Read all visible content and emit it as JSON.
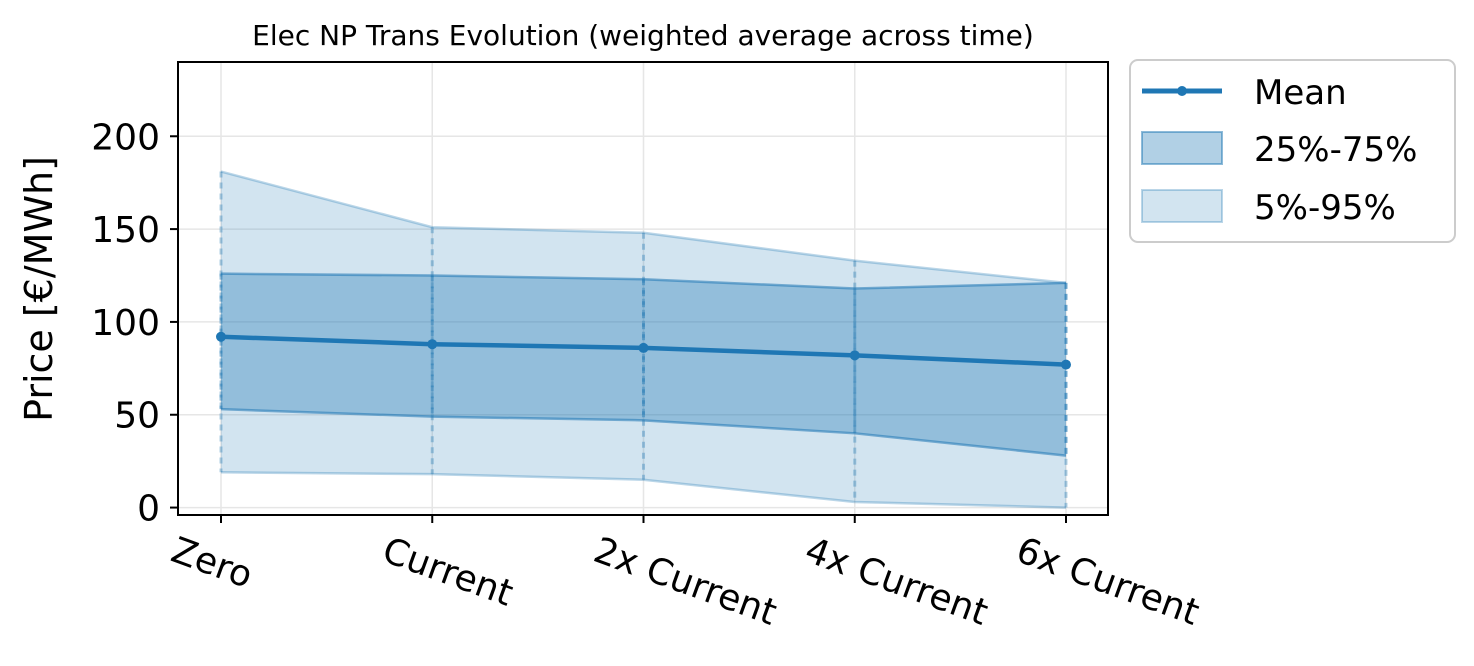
{
  "chart_data": {
    "type": "line",
    "title": "Elec NP Trans Evolution (weighted average across time)",
    "xlabel": "",
    "ylabel": "Price [€/MWh]",
    "categories": [
      "Zero",
      "Current",
      "2x Current",
      "4x Current",
      "6x Current"
    ],
    "ylim": [
      -4,
      240
    ],
    "yticks": [
      0,
      50,
      100,
      150,
      200
    ],
    "grid": true,
    "legend_placement": "outside-top-right",
    "series": [
      {
        "name": "Mean",
        "values": [
          92,
          88,
          86,
          82,
          77
        ],
        "color": "#1f77b4"
      }
    ],
    "bands": [
      {
        "name": "25%-75%",
        "lower": [
          53,
          49,
          47,
          40,
          28
        ],
        "upper": [
          126,
          125,
          123,
          118,
          121
        ],
        "color": "#1f77b4",
        "opacity": 0.35
      },
      {
        "name": "5%-95%",
        "lower": [
          19,
          18,
          15,
          3,
          0
        ],
        "upper": [
          181,
          151,
          148,
          133,
          121
        ],
        "color": "#1f77b4",
        "opacity": 0.2
      }
    ]
  }
}
